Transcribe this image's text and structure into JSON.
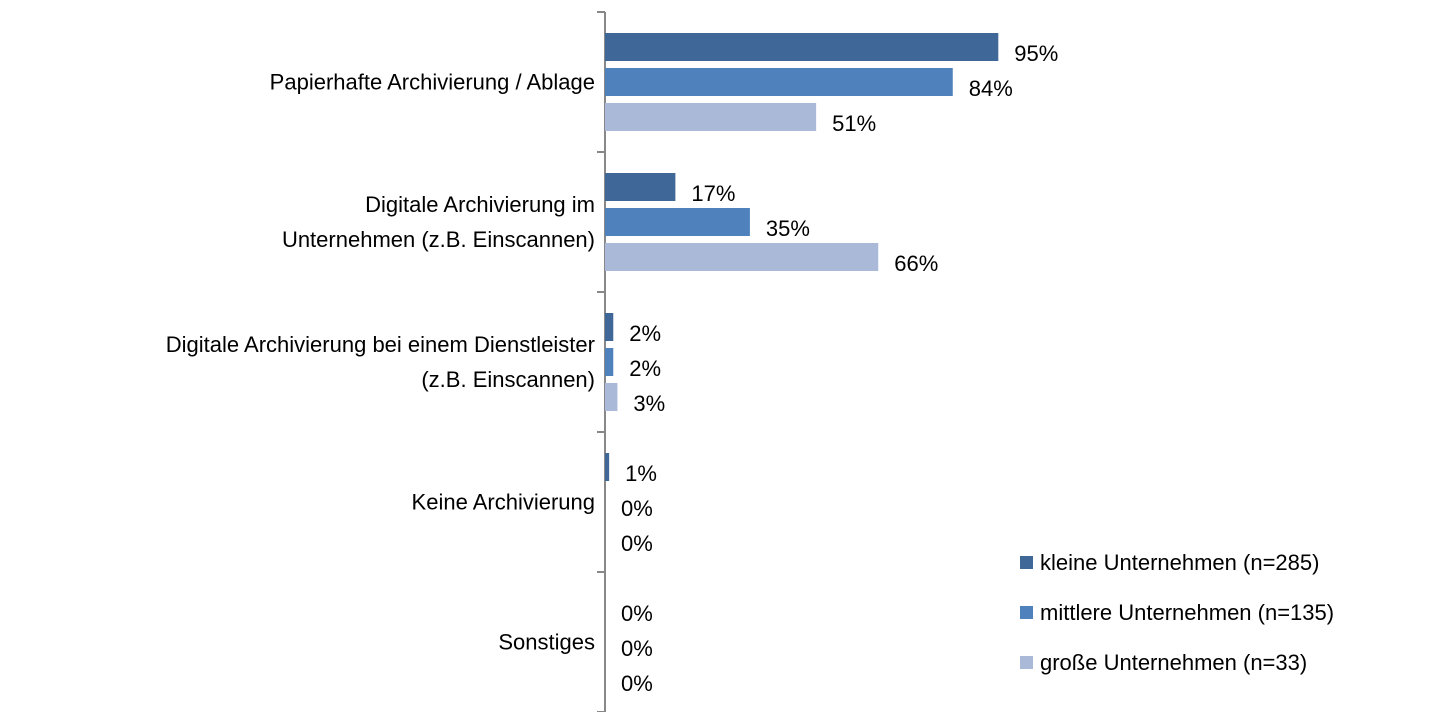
{
  "chart_data": {
    "type": "barh",
    "categories": [
      "Papierhafte Archivierung / Ablage",
      "Digitale Archivierung im\nUnternehmen (z.B. Einscannen)",
      "Digitale Archivierung bei einem Dienstleister\n(z.B. Einscannen)",
      "Keine Archivierung",
      "Sonstiges"
    ],
    "series": [
      {
        "name": "kleine Unternehmen (n=285)",
        "color": "#3f6899",
        "values": [
          95,
          17,
          2,
          1,
          0
        ],
        "value_labels": [
          "95%",
          "17%",
          "2%",
          "1%",
          "0%"
        ]
      },
      {
        "name": "mittlere Unternehmen (n=135)",
        "color": "#4f81bd",
        "values": [
          84,
          35,
          2,
          0,
          0
        ],
        "value_labels": [
          "84%",
          "35%",
          "2%",
          "0%",
          "0%"
        ]
      },
      {
        "name": "große Unternehmen (n=33)",
        "color": "#aab9d7",
        "values": [
          51,
          66,
          3,
          0,
          0
        ],
        "value_labels": [
          "51%",
          "66%",
          "3%",
          "0%",
          "0%"
        ]
      }
    ],
    "xlim": [
      0,
      100
    ],
    "legend": "bottom-right"
  }
}
